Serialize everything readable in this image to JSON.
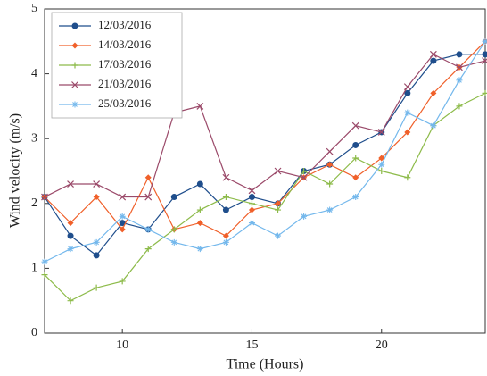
{
  "chart_data": {
    "type": "line",
    "x_label": "Time (Hours)",
    "y_label": "Wind velocity (m/s)",
    "x": [
      7,
      8,
      9,
      10,
      11,
      12,
      13,
      14,
      15,
      16,
      17,
      18,
      19,
      20,
      21,
      22,
      23,
      24
    ],
    "xlim": [
      7,
      24
    ],
    "xticks": [
      10,
      15,
      20
    ],
    "ylim": [
      0,
      5
    ],
    "yticks": [
      0,
      1,
      2,
      3,
      4,
      5
    ],
    "legend": "upper left",
    "series": [
      {
        "name": "12/03/2016",
        "color": "#1f4e8c",
        "marker": "circle",
        "values": [
          2.1,
          1.5,
          1.2,
          1.7,
          1.6,
          2.1,
          2.3,
          1.9,
          2.1,
          2.0,
          2.5,
          2.6,
          2.9,
          3.1,
          3.7,
          4.2,
          4.3,
          4.3
        ]
      },
      {
        "name": "14/03/2016",
        "color": "#f0602a",
        "marker": "diamond",
        "values": [
          2.1,
          1.7,
          2.1,
          1.6,
          2.4,
          1.6,
          1.7,
          1.5,
          1.9,
          2.0,
          2.4,
          2.6,
          2.4,
          2.7,
          3.1,
          3.7,
          4.1,
          4.5
        ]
      },
      {
        "name": "17/03/2016",
        "color": "#8dbb4a",
        "marker": "plus",
        "values": [
          0.9,
          0.5,
          0.7,
          0.8,
          1.3,
          1.6,
          1.9,
          2.1,
          2.0,
          1.9,
          2.5,
          2.3,
          2.7,
          2.5,
          2.4,
          3.2,
          3.5,
          3.7
        ]
      },
      {
        "name": "21/03/2016",
        "color": "#9b4a6a",
        "marker": "x",
        "values": [
          2.1,
          2.3,
          2.3,
          2.1,
          2.1,
          3.4,
          3.5,
          2.4,
          2.2,
          2.5,
          2.4,
          2.8,
          3.2,
          3.1,
          3.8,
          4.3,
          4.1,
          4.2
        ]
      },
      {
        "name": "25/03/2016",
        "color": "#74b8ec",
        "marker": "star",
        "values": [
          1.1,
          1.3,
          1.4,
          1.8,
          1.6,
          1.4,
          1.3,
          1.4,
          1.7,
          1.5,
          1.8,
          1.9,
          2.1,
          2.6,
          3.4,
          3.2,
          3.9,
          4.5
        ]
      }
    ]
  }
}
